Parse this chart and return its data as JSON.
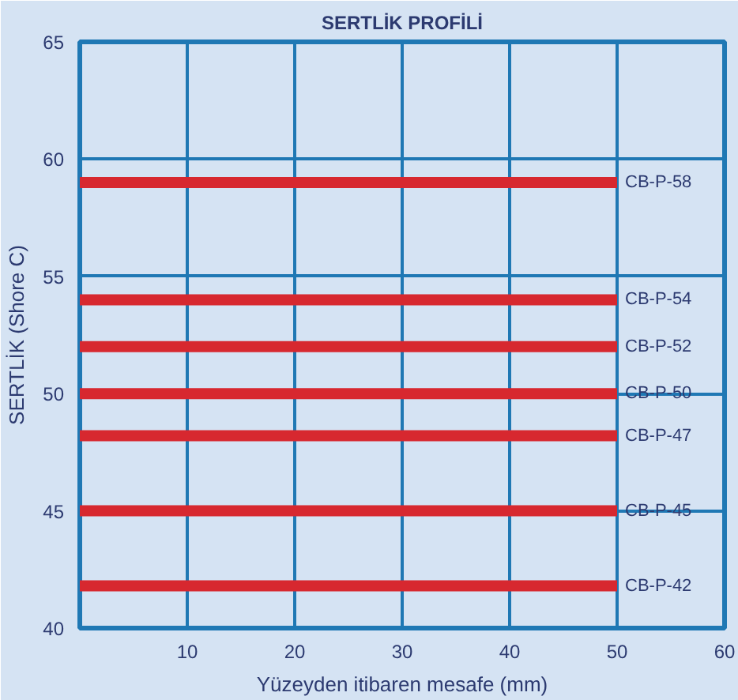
{
  "chart_data": {
    "type": "line",
    "title": "SERTLİK PROFİLİ",
    "xlabel": "Yüzeyden itibaren mesafe (mm)",
    "ylabel": "SERTLİK (Shore C)",
    "x": [
      0,
      50
    ],
    "series": [
      {
        "name": "CB-P-58",
        "color": "#d7282f",
        "values": [
          59,
          59
        ]
      },
      {
        "name": "CB-P-54",
        "color": "#d7282f",
        "values": [
          54,
          54
        ]
      },
      {
        "name": "CB-P-52",
        "color": "#d7282f",
        "values": [
          52,
          52
        ]
      },
      {
        "name": "CB-P-50",
        "color": "#d7282f",
        "values": [
          50,
          50
        ]
      },
      {
        "name": "CB-P-47",
        "color": "#d7282f",
        "values": [
          48.2,
          48.2
        ]
      },
      {
        "name": "CB-P-45",
        "color": "#d7282f",
        "values": [
          45,
          45
        ]
      },
      {
        "name": "CB-P-42",
        "color": "#d7282f",
        "values": [
          41.8,
          41.8
        ]
      }
    ],
    "xlim": [
      0,
      60
    ],
    "ylim": [
      40,
      65
    ],
    "xticks": [
      10,
      20,
      30,
      40,
      50,
      60
    ],
    "yticks": [
      40,
      45,
      50,
      55,
      60,
      65
    ],
    "grid": true,
    "line_style": "solid"
  }
}
